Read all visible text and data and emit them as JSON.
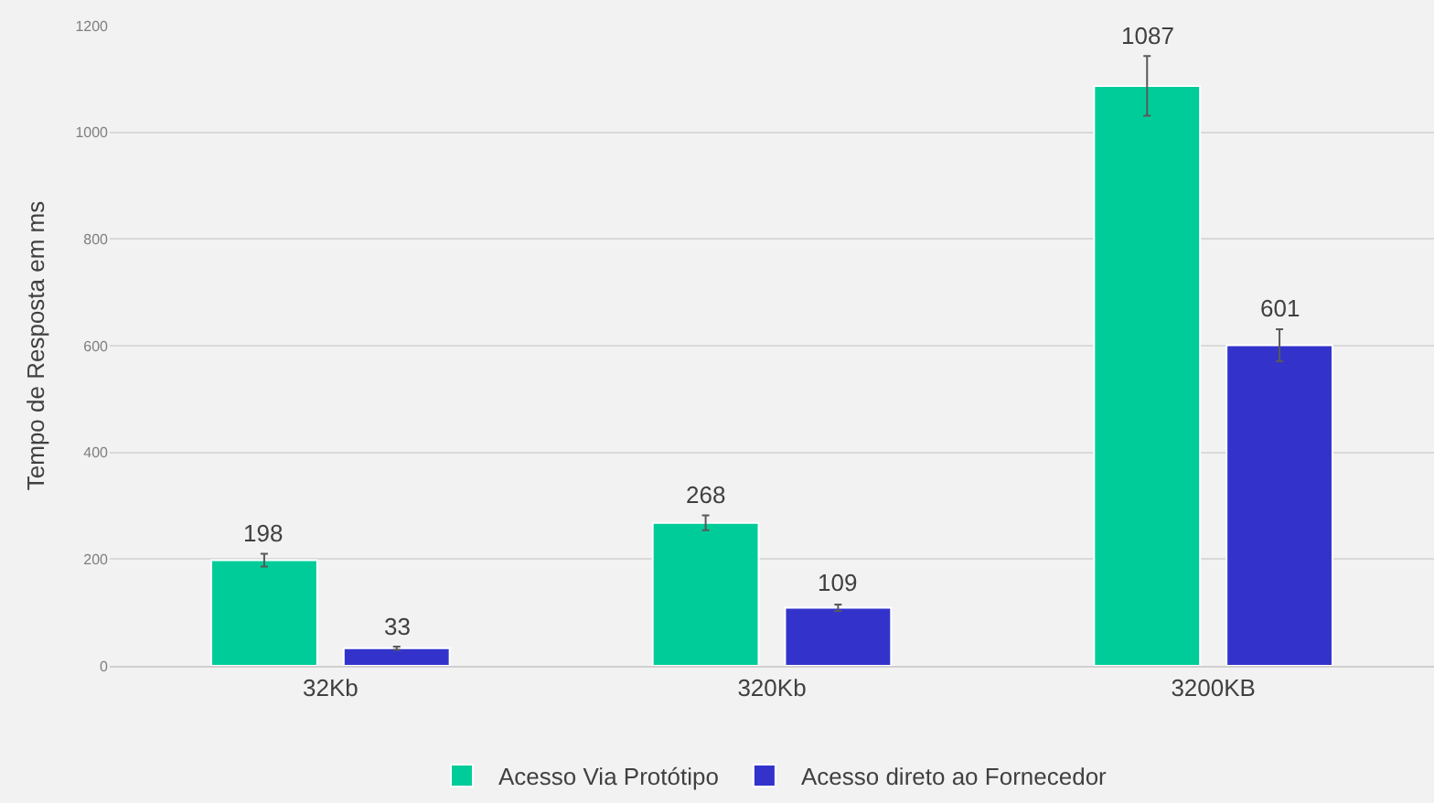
{
  "chart_data": {
    "type": "bar",
    "ylabel": "Tempo de Resposta em ms",
    "categories": [
      "32Kb",
      "320Kb",
      "3200KB"
    ],
    "series": [
      {
        "name": "Acesso Via Protótipo",
        "color": "#00cc99",
        "values": [
          198,
          268,
          1087
        ],
        "errors": [
          12,
          14,
          56
        ]
      },
      {
        "name": "Acesso direto ao Fornecedor",
        "color": "#3333cc",
        "values": [
          33,
          109,
          601
        ],
        "errors": [
          3,
          6,
          30
        ]
      }
    ],
    "ylim": [
      0,
      1200
    ],
    "yticks": [
      0,
      200,
      400,
      600,
      800,
      1000,
      1200
    ],
    "grid": "y",
    "legend": "bottom",
    "data_labels": true
  }
}
